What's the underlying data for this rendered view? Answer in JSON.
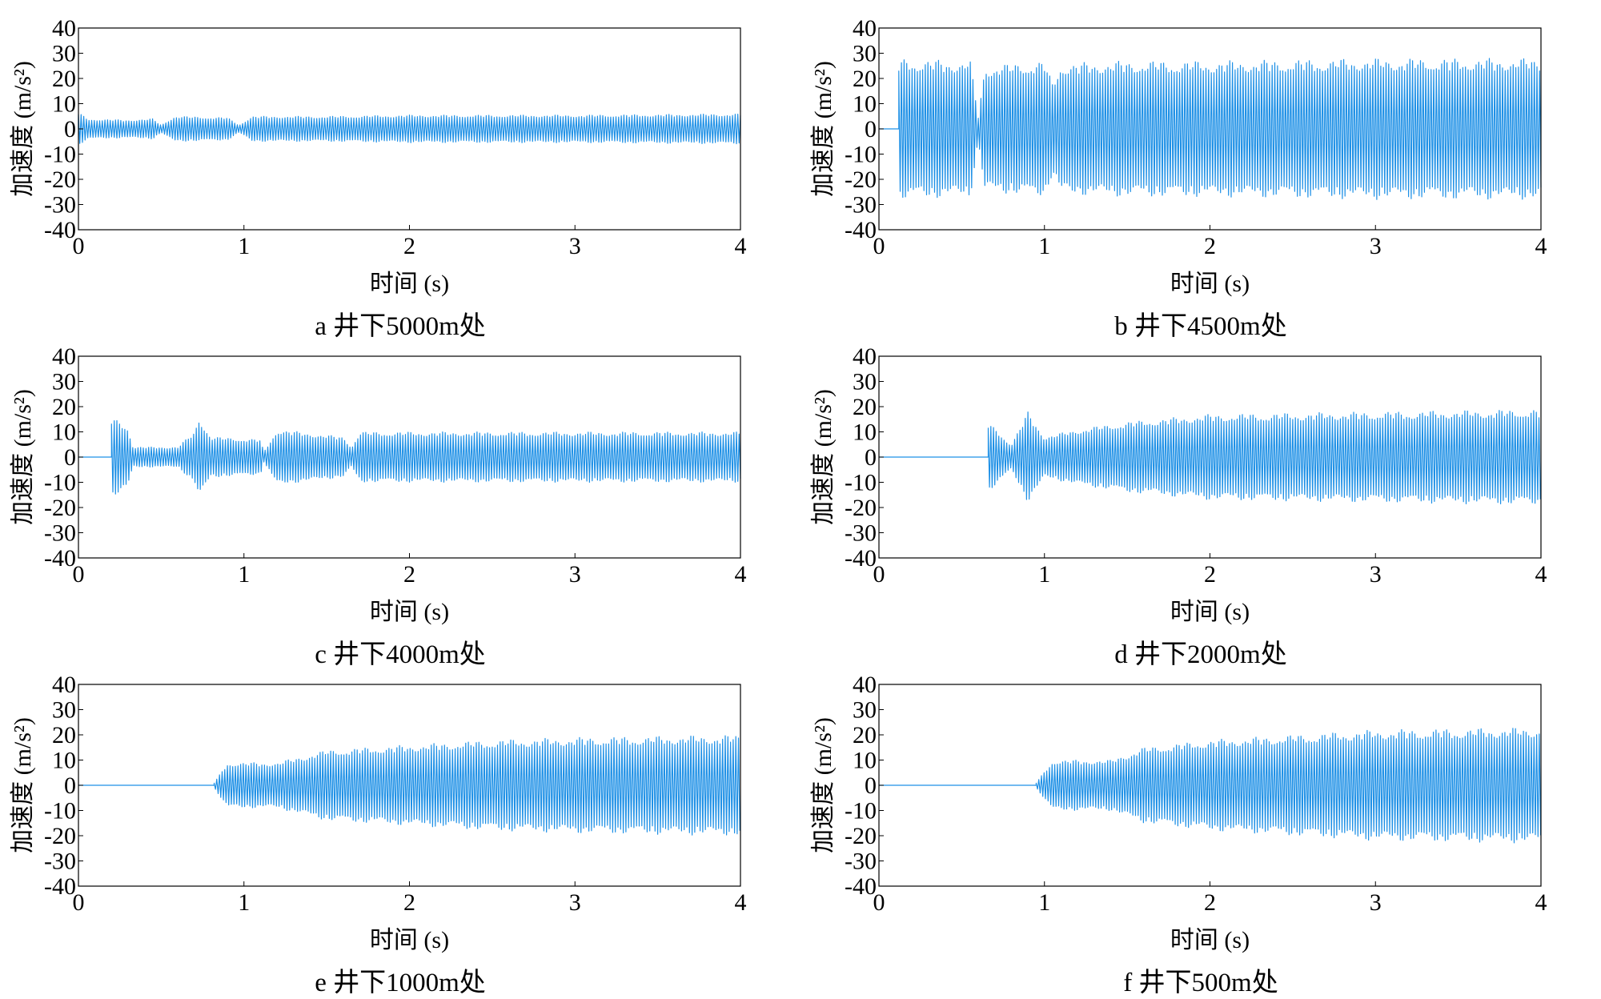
{
  "chart_data": [
    {
      "type": "line",
      "caption": "a 井下5000m处",
      "xlabel": "时间 (s)",
      "ylabel": "加速度 (m/s²)",
      "xlim": [
        0,
        4
      ],
      "ylim": [
        -40,
        40
      ],
      "x_ticks": [
        "0",
        "1",
        "2",
        "3",
        "4"
      ],
      "y_ticks": [
        "40",
        "30",
        "20",
        "10",
        "0",
        "-10",
        "-20",
        "-30",
        "-40"
      ],
      "color": "#1e90e6",
      "onset_time": 0.0,
      "envelope": [
        [
          0,
          7
        ],
        [
          0.05,
          4
        ],
        [
          0.3,
          3.5
        ],
        [
          0.45,
          4
        ],
        [
          0.5,
          1.5
        ],
        [
          0.58,
          5
        ],
        [
          0.9,
          4.5
        ],
        [
          0.97,
          1.5
        ],
        [
          1.05,
          5
        ],
        [
          1.5,
          5
        ],
        [
          2,
          5.5
        ],
        [
          3,
          5.5
        ],
        [
          4,
          6
        ]
      ]
    },
    {
      "type": "line",
      "caption": "b 井下4500m处",
      "xlabel": "时间 (s)",
      "ylabel": "加速度 (m/s²)",
      "xlim": [
        0,
        4
      ],
      "ylim": [
        -40,
        40
      ],
      "x_ticks": [
        "0",
        "1",
        "2",
        "3",
        "4"
      ],
      "y_ticks": [
        "40",
        "30",
        "20",
        "10",
        "0",
        "-10",
        "-20",
        "-30",
        "-40"
      ],
      "color": "#1e90e6",
      "onset_time": 0.12,
      "envelope": [
        [
          0.12,
          28
        ],
        [
          0.5,
          27
        ],
        [
          0.55,
          28
        ],
        [
          0.6,
          5
        ],
        [
          0.64,
          25
        ],
        [
          1.0,
          27
        ],
        [
          1.05,
          18
        ],
        [
          1.1,
          26
        ],
        [
          1.5,
          27
        ],
        [
          2,
          27
        ],
        [
          3,
          28
        ],
        [
          4,
          28
        ]
      ]
    },
    {
      "type": "line",
      "caption": "c 井下4000m处",
      "xlabel": "时间 (s)",
      "ylabel": "加速度 (m/s²)",
      "xlim": [
        0,
        4
      ],
      "ylim": [
        -40,
        40
      ],
      "x_ticks": [
        "0",
        "1",
        "2",
        "3",
        "4"
      ],
      "y_ticks": [
        "40",
        "30",
        "20",
        "10",
        "0",
        "-10",
        "-20",
        "-30",
        "-40"
      ],
      "color": "#1e90e6",
      "onset_time": 0.2,
      "envelope": [
        [
          0.2,
          16
        ],
        [
          0.3,
          12
        ],
        [
          0.33,
          4
        ],
        [
          0.6,
          4
        ],
        [
          0.7,
          10
        ],
        [
          0.73,
          16
        ],
        [
          0.8,
          8
        ],
        [
          1.1,
          7
        ],
        [
          1.12,
          2
        ],
        [
          1.2,
          11
        ],
        [
          1.6,
          8
        ],
        [
          1.65,
          4
        ],
        [
          1.7,
          10
        ],
        [
          2.0,
          10
        ],
        [
          3.0,
          10
        ],
        [
          4.0,
          10
        ]
      ]
    },
    {
      "type": "line",
      "caption": "d 井下2000m处",
      "xlabel": "时间 (s)",
      "ylabel": "加速度 (m/s²)",
      "xlim": [
        0,
        4
      ],
      "ylim": [
        -40,
        40
      ],
      "x_ticks": [
        "0",
        "1",
        "2",
        "3",
        "4"
      ],
      "y_ticks": [
        "40",
        "30",
        "20",
        "10",
        "0",
        "-10",
        "-20",
        "-30",
        "-40"
      ],
      "color": "#1e90e6",
      "onset_time": 0.66,
      "envelope": [
        [
          0.66,
          14
        ],
        [
          0.8,
          5
        ],
        [
          0.9,
          18
        ],
        [
          1.0,
          8
        ],
        [
          1.2,
          11
        ],
        [
          1.5,
          14
        ],
        [
          2.0,
          17
        ],
        [
          3.0,
          18
        ],
        [
          4.0,
          19
        ]
      ]
    },
    {
      "type": "line",
      "caption": "e 井下1000m处",
      "xlabel": "时间 (s)",
      "ylabel": "加速度 (m/s²)",
      "xlim": [
        0,
        4
      ],
      "ylim": [
        -40,
        40
      ],
      "x_ticks": [
        "0",
        "1",
        "2",
        "3",
        "4"
      ],
      "y_ticks": [
        "40",
        "30",
        "20",
        "10",
        "0",
        "-10",
        "-20",
        "-30",
        "-40"
      ],
      "color": "#1e90e6",
      "onset_time": 0.82,
      "envelope": [
        [
          0.82,
          1
        ],
        [
          0.9,
          9
        ],
        [
          1.2,
          9
        ],
        [
          1.5,
          14
        ],
        [
          2.0,
          16
        ],
        [
          2.5,
          18
        ],
        [
          3.0,
          19
        ],
        [
          4.0,
          20
        ]
      ]
    },
    {
      "type": "line",
      "caption": "f 井下500m处",
      "xlabel": "时间 (s)",
      "ylabel": "加速度 (m/s²)",
      "xlim": [
        0,
        4
      ],
      "ylim": [
        -40,
        40
      ],
      "x_ticks": [
        "0",
        "1",
        "2",
        "3",
        "4"
      ],
      "y_ticks": [
        "40",
        "30",
        "20",
        "10",
        "0",
        "-10",
        "-20",
        "-30",
        "-40"
      ],
      "color": "#1e90e6",
      "onset_time": 0.95,
      "envelope": [
        [
          0.95,
          1
        ],
        [
          1.05,
          10
        ],
        [
          1.4,
          10
        ],
        [
          1.6,
          15
        ],
        [
          2.0,
          18
        ],
        [
          2.5,
          20
        ],
        [
          3.0,
          22
        ],
        [
          4.0,
          23
        ]
      ]
    }
  ]
}
